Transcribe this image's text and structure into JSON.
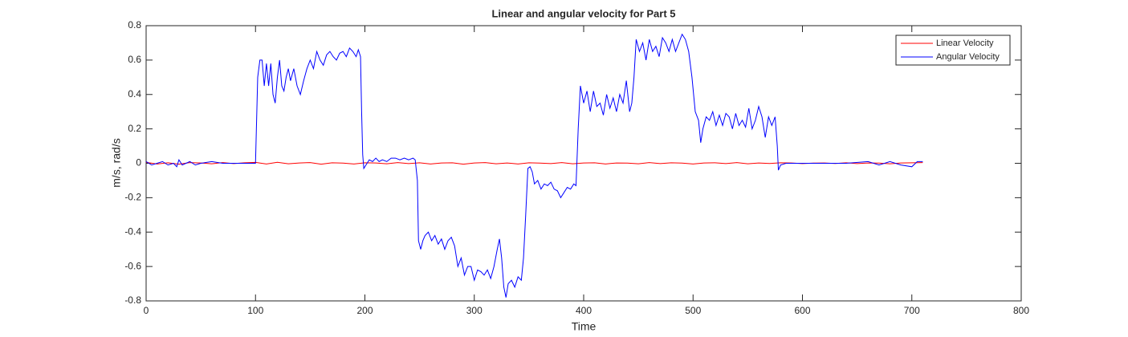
{
  "chart_data": {
    "type": "line",
    "title": "Linear and angular velocity for Part 5",
    "xlabel": "Time",
    "ylabel": "m/s, rad/s",
    "xlim": [
      0,
      800
    ],
    "xticks": [
      0,
      100,
      200,
      300,
      400,
      500,
      600,
      700,
      800
    ],
    "ylim": [
      -0.8,
      0.8
    ],
    "yticks": [
      -0.8,
      -0.6,
      -0.4,
      -0.2,
      0,
      0.2,
      0.4,
      0.6,
      0.8
    ],
    "grid": false,
    "legend": "top-right",
    "series": [
      {
        "name": "Linear Velocity",
        "color": "#ff0000",
        "x": [
          0,
          10,
          20,
          30,
          40,
          50,
          60,
          70,
          80,
          90,
          100,
          110,
          120,
          130,
          140,
          150,
          160,
          170,
          180,
          190,
          200,
          210,
          220,
          230,
          240,
          250,
          260,
          270,
          280,
          290,
          300,
          310,
          320,
          330,
          340,
          350,
          360,
          370,
          380,
          390,
          400,
          410,
          420,
          430,
          440,
          450,
          460,
          470,
          480,
          490,
          500,
          510,
          520,
          530,
          540,
          550,
          560,
          570,
          580,
          590,
          600,
          610,
          620,
          630,
          640,
          650,
          660,
          670,
          680,
          690,
          700,
          710
        ],
        "values": [
          0.005,
          -0.004,
          0.003,
          -0.005,
          0.004,
          0.002,
          -0.003,
          0.004,
          -0.002,
          0.003,
          0.005,
          -0.004,
          0.006,
          -0.003,
          0.002,
          0.004,
          -0.005,
          0.003,
          0.001,
          -0.004,
          0.003,
          0.002,
          -0.003,
          0.004,
          -0.002,
          0.003,
          -0.004,
          0.002,
          0.003,
          -0.005,
          0.002,
          0.004,
          -0.003,
          0.002,
          -0.004,
          0.003,
          0.001,
          -0.002,
          0.004,
          -0.003,
          0.002,
          0.003,
          -0.004,
          0.002,
          0.001,
          -0.003,
          0.004,
          -0.002,
          0.003,
          0.001,
          -0.004,
          0.002,
          0.003,
          -0.002,
          0.004,
          -0.003,
          0.002,
          -0.001,
          0.003,
          0.002,
          -0.002,
          0.001,
          0.002,
          -0.001,
          0.003,
          -0.002,
          0.002,
          0.001,
          -0.003,
          0.002,
          0.003,
          0.004
        ]
      },
      {
        "name": "Angular Velocity",
        "color": "#0000ff",
        "x": [
          0,
          5,
          10,
          15,
          20,
          25,
          28,
          30,
          33,
          40,
          45,
          50,
          60,
          70,
          80,
          90,
          100,
          102,
          104,
          106,
          108,
          110,
          112,
          114,
          116,
          118,
          120,
          122,
          124,
          126,
          128,
          130,
          132,
          135,
          138,
          141,
          144,
          147,
          150,
          153,
          156,
          159,
          162,
          165,
          168,
          171,
          174,
          177,
          180,
          183,
          186,
          189,
          192,
          194,
          196,
          197,
          198,
          199,
          201,
          204,
          207,
          210,
          213,
          216,
          220,
          224,
          228,
          232,
          236,
          240,
          244,
          246,
          248,
          249,
          251,
          253,
          255,
          258,
          261,
          264,
          267,
          270,
          273,
          276,
          279,
          282,
          285,
          288,
          291,
          294,
          297,
          300,
          303,
          306,
          309,
          312,
          315,
          318,
          321,
          323,
          325,
          327,
          329,
          331,
          334,
          337,
          340,
          343,
          345,
          347,
          349,
          351,
          353,
          355,
          358,
          361,
          364,
          367,
          370,
          373,
          376,
          379,
          382,
          385,
          388,
          391,
          393,
          395,
          397,
          400,
          403,
          406,
          409,
          412,
          415,
          418,
          421,
          424,
          427,
          430,
          433,
          436,
          439,
          442,
          444,
          446,
          448,
          451,
          454,
          457,
          460,
          463,
          466,
          469,
          472,
          475,
          478,
          481,
          484,
          487,
          490,
          493,
          496,
          499,
          502,
          505,
          507,
          509,
          512,
          515,
          518,
          521,
          524,
          527,
          530,
          533,
          536,
          539,
          542,
          545,
          548,
          551,
          554,
          557,
          560,
          563,
          566,
          569,
          572,
          575,
          577,
          578,
          580,
          585,
          590,
          600,
          620,
          640,
          660,
          670,
          680,
          690,
          700,
          705,
          710
        ],
        "values": [
          0.01,
          -0.01,
          0,
          0.01,
          -0.01,
          0,
          -0.02,
          0.02,
          -0.01,
          0.01,
          -0.01,
          0,
          0.01,
          0,
          0,
          0,
          0,
          0.5,
          0.6,
          0.6,
          0.45,
          0.58,
          0.45,
          0.58,
          0.4,
          0.35,
          0.5,
          0.6,
          0.45,
          0.42,
          0.5,
          0.55,
          0.48,
          0.55,
          0.45,
          0.4,
          0.48,
          0.55,
          0.6,
          0.55,
          0.65,
          0.6,
          0.57,
          0.63,
          0.65,
          0.62,
          0.6,
          0.64,
          0.65,
          0.62,
          0.67,
          0.65,
          0.62,
          0.66,
          0.62,
          0.3,
          0.05,
          -0.03,
          -0.01,
          0.02,
          0.01,
          0.03,
          0.01,
          0.02,
          0.01,
          0.03,
          0.03,
          0.02,
          0.03,
          0.02,
          0.03,
          0.02,
          -0.1,
          -0.45,
          -0.5,
          -0.45,
          -0.42,
          -0.4,
          -0.45,
          -0.42,
          -0.47,
          -0.44,
          -0.5,
          -0.45,
          -0.43,
          -0.48,
          -0.6,
          -0.55,
          -0.65,
          -0.6,
          -0.6,
          -0.68,
          -0.62,
          -0.63,
          -0.65,
          -0.62,
          -0.67,
          -0.6,
          -0.5,
          -0.44,
          -0.55,
          -0.72,
          -0.78,
          -0.7,
          -0.68,
          -0.72,
          -0.66,
          -0.68,
          -0.55,
          -0.3,
          -0.03,
          -0.02,
          -0.05,
          -0.12,
          -0.1,
          -0.15,
          -0.12,
          -0.13,
          -0.11,
          -0.15,
          -0.16,
          -0.2,
          -0.17,
          -0.14,
          -0.15,
          -0.12,
          -0.13,
          0.2,
          0.45,
          0.35,
          0.42,
          0.3,
          0.42,
          0.33,
          0.35,
          0.28,
          0.4,
          0.32,
          0.38,
          0.3,
          0.4,
          0.35,
          0.48,
          0.3,
          0.35,
          0.5,
          0.72,
          0.65,
          0.7,
          0.6,
          0.72,
          0.65,
          0.68,
          0.62,
          0.73,
          0.7,
          0.65,
          0.72,
          0.65,
          0.7,
          0.75,
          0.72,
          0.65,
          0.5,
          0.3,
          0.25,
          0.12,
          0.2,
          0.27,
          0.25,
          0.3,
          0.22,
          0.28,
          0.22,
          0.29,
          0.27,
          0.2,
          0.29,
          0.22,
          0.25,
          0.21,
          0.32,
          0.2,
          0.25,
          0.33,
          0.27,
          0.15,
          0.27,
          0.22,
          0.27,
          0.1,
          -0.04,
          -0.01,
          0,
          0,
          0,
          0,
          0,
          0.01,
          -0.01,
          0.01,
          -0.01,
          -0.02,
          0.01,
          0.01
        ]
      }
    ]
  }
}
